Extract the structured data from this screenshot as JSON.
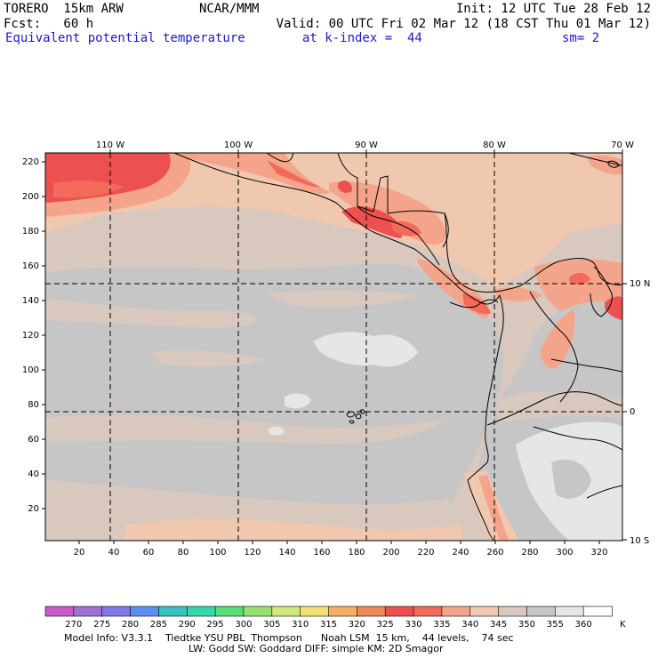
{
  "header": {
    "model": "TORERO  15km ARW",
    "org": "NCAR/MMM",
    "init": "Init: 12 UTC Tue 28 Feb 12",
    "fcst": "Fcst:   60 h",
    "valid": "Valid: 00 UTC Fri 02 Mar 12 (18 CST Thu 01 Mar 12)",
    "field": "Equivalent potential temperature",
    "level": "at k-index =  44",
    "smooth": "sm= 2"
  },
  "axes": {
    "top": [
      "110 W",
      "100 W",
      "90 W",
      "80 W",
      "70 W"
    ],
    "right": [
      "10 N",
      "0",
      "10 S"
    ],
    "left": [
      "220",
      "200",
      "180",
      "160",
      "140",
      "120",
      "100",
      "80",
      "60",
      "40",
      "20"
    ],
    "bottom": [
      "20",
      "40",
      "60",
      "80",
      "100",
      "120",
      "140",
      "160",
      "180",
      "200",
      "220",
      "240",
      "260",
      "280",
      "300",
      "320"
    ]
  },
  "colorbar": {
    "labels": [
      "270",
      "275",
      "280",
      "285",
      "290",
      "295",
      "300",
      "305",
      "310",
      "315",
      "320",
      "325",
      "330",
      "335",
      "340",
      "345",
      "350",
      "355",
      "360"
    ],
    "unit": "K",
    "colors": [
      "#c85ac8",
      "#a070d6",
      "#8078e8",
      "#5a8ef0",
      "#38c0c0",
      "#34d8a8",
      "#58dc78",
      "#98e070",
      "#d2e878",
      "#f4e070",
      "#f6b060",
      "#f08858",
      "#ec5050",
      "#f46a5a",
      "#f4a48a",
      "#f0c8b0",
      "#d8c8be",
      "#c6c6c6",
      "#e6e6e6",
      "#ffffff"
    ]
  },
  "map": {
    "colors": {
      "c330": "#ec5050",
      "c335": "#f46a5a",
      "c340": "#f4a48a",
      "c345": "#f0c8b0",
      "c350": "#d8c8be",
      "c355": "#c6c6c6",
      "c360": "#e6e6e6",
      "coast": "#000000",
      "grid": "#000000"
    }
  },
  "footer": {
    "line1": "Model Info: V3.3.1    Tiedtke YSU PBL  Thompson      Noah LSM  15 km,    44 levels,    74 sec",
    "line2": "LW: Godd SW: Goddard DIFF: simple KM: 2D Smagor"
  }
}
